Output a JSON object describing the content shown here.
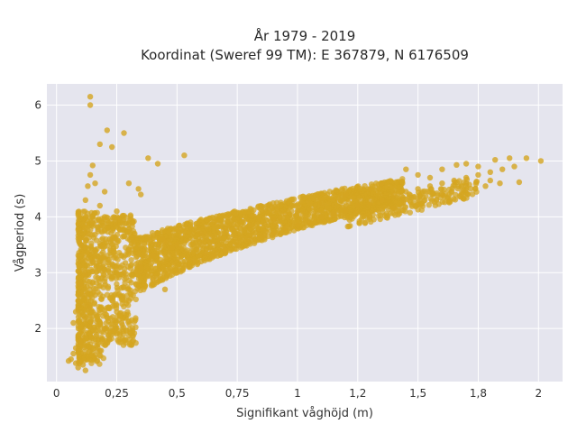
{
  "chart_data": {
    "type": "scatter",
    "title": "År 1979 - 2019",
    "subtitle": "Koordinat (Sweref 99 TM): E 367879, N 6176509",
    "xlabel": "Signifikant våghöjd (m)",
    "ylabel": "Vågperiod (s)",
    "xlim": [
      -0.04,
      2.1
    ],
    "ylim": [
      1.05,
      6.38
    ],
    "xticks": [
      0,
      0.25,
      0.5,
      0.75,
      1,
      1.25,
      1.5,
      1.75,
      2
    ],
    "xtick_labels": [
      "0",
      "0,25",
      "0,5",
      "0,75",
      "1",
      "1,2",
      "1,5",
      "1,8",
      "2"
    ],
    "yticks": [
      2,
      3,
      4,
      5,
      6
    ],
    "ytick_labels": [
      "2",
      "3",
      "4",
      "5",
      "6"
    ],
    "grid": true,
    "background": "#e5e5ee",
    "marker_color": "#d4a520",
    "points": [
      [
        0.14,
        6.15
      ],
      [
        0.14,
        6.0
      ],
      [
        0.21,
        5.55
      ],
      [
        0.28,
        5.5
      ],
      [
        0.18,
        5.3
      ],
      [
        0.23,
        5.25
      ],
      [
        0.38,
        5.05
      ],
      [
        0.42,
        4.95
      ],
      [
        0.53,
        5.1
      ],
      [
        0.15,
        4.92
      ],
      [
        0.14,
        4.75
      ],
      [
        0.16,
        4.6
      ],
      [
        0.34,
        4.5
      ],
      [
        0.35,
        4.4
      ],
      [
        0.13,
        4.55
      ],
      [
        0.2,
        4.45
      ],
      [
        0.3,
        4.6
      ],
      [
        0.12,
        4.3
      ],
      [
        0.45,
        3.55
      ],
      [
        0.5,
        3.5
      ],
      [
        0.44,
        3.6
      ],
      [
        0.6,
        3.7
      ],
      [
        0.7,
        3.8
      ],
      [
        0.4,
        3.3
      ],
      [
        0.1,
        1.4
      ],
      [
        0.06,
        1.45
      ],
      [
        0.08,
        1.38
      ],
      [
        0.09,
        1.3
      ],
      [
        0.12,
        1.25
      ],
      [
        0.11,
        1.35
      ],
      [
        0.05,
        1.42
      ],
      [
        0.07,
        1.55
      ],
      [
        0.08,
        1.65
      ],
      [
        0.1,
        1.75
      ],
      [
        0.07,
        2.1
      ],
      [
        0.08,
        2.3
      ],
      [
        0.12,
        2.2
      ],
      [
        0.14,
        2.4
      ],
      [
        0.16,
        2.6
      ],
      [
        0.1,
        2.8
      ],
      [
        0.12,
        3.0
      ],
      [
        0.15,
        3.2
      ],
      [
        0.1,
        3.5
      ],
      [
        0.13,
        3.7
      ],
      [
        0.15,
        3.9
      ],
      [
        0.2,
        4.0
      ],
      [
        0.25,
        4.1
      ],
      [
        0.18,
        4.2
      ],
      [
        0.22,
        3.6
      ],
      [
        0.3,
        3.4
      ],
      [
        0.28,
        3.0
      ],
      [
        0.35,
        3.1
      ],
      [
        0.33,
        2.8
      ],
      [
        0.4,
        2.9
      ],
      [
        0.3,
        2.5
      ],
      [
        0.25,
        2.3
      ],
      [
        0.2,
        2.0
      ],
      [
        0.22,
        1.8
      ],
      [
        0.18,
        1.6
      ],
      [
        0.27,
        2.1
      ],
      [
        0.45,
        2.7
      ],
      [
        0.5,
        3.0
      ],
      [
        0.55,
        3.1
      ],
      [
        0.6,
        3.2
      ],
      [
        0.65,
        3.3
      ],
      [
        0.7,
        3.4
      ],
      [
        0.75,
        3.5
      ],
      [
        0.8,
        3.6
      ],
      [
        0.85,
        3.65
      ],
      [
        0.9,
        3.7
      ],
      [
        0.95,
        3.8
      ],
      [
        1.0,
        3.85
      ],
      [
        1.05,
        3.9
      ],
      [
        1.1,
        4.0
      ],
      [
        1.15,
        4.05
      ],
      [
        1.2,
        4.1
      ],
      [
        1.25,
        4.2
      ],
      [
        1.3,
        4.25
      ],
      [
        1.35,
        4.3
      ],
      [
        1.4,
        4.4
      ],
      [
        1.45,
        4.45
      ],
      [
        1.5,
        4.5
      ],
      [
        1.55,
        4.55
      ],
      [
        1.6,
        4.6
      ],
      [
        1.65,
        4.65
      ],
      [
        1.7,
        4.7
      ],
      [
        1.75,
        4.75
      ],
      [
        1.8,
        4.8
      ],
      [
        1.85,
        4.85
      ],
      [
        1.9,
        4.9
      ],
      [
        1.95,
        5.05
      ],
      [
        2.01,
        5.0
      ],
      [
        1.88,
        5.05
      ],
      [
        1.84,
        4.6
      ],
      [
        1.75,
        4.9
      ],
      [
        1.7,
        4.95
      ],
      [
        1.6,
        4.85
      ],
      [
        1.55,
        4.7
      ],
      [
        1.45,
        4.85
      ],
      [
        1.5,
        4.75
      ],
      [
        1.35,
        4.6
      ],
      [
        1.3,
        4.5
      ],
      [
        1.2,
        4.4
      ],
      [
        1.1,
        4.25
      ],
      [
        1.0,
        4.1
      ],
      [
        0.95,
        4.05
      ],
      [
        0.9,
        3.95
      ],
      [
        0.8,
        3.85
      ],
      [
        1.3,
        4.0
      ],
      [
        1.4,
        4.15
      ],
      [
        1.5,
        4.3
      ],
      [
        1.6,
        4.4
      ],
      [
        1.7,
        4.6
      ],
      [
        1.8,
        4.65
      ],
      [
        1.78,
        4.55
      ],
      [
        1.92,
        4.62
      ],
      [
        1.82,
        5.02
      ],
      [
        1.66,
        4.93
      ],
      [
        0.48,
        3.45
      ],
      [
        0.62,
        3.35
      ]
    ]
  }
}
